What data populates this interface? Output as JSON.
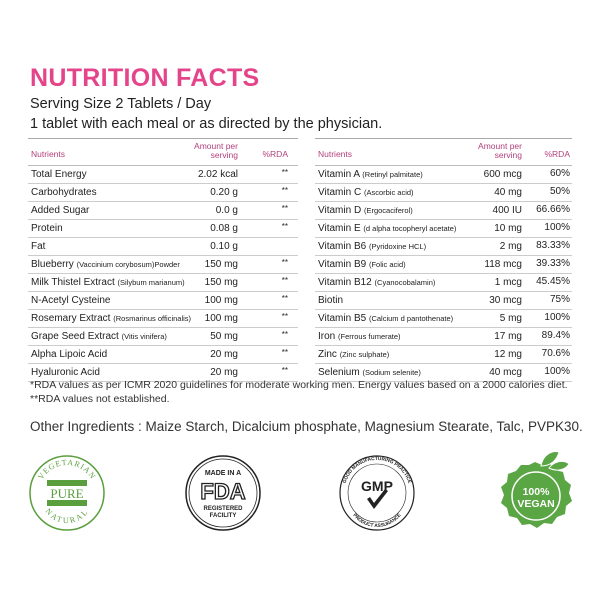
{
  "title": "NUTRITION FACTS",
  "serving_size": "Serving Size 2 Tablets / Day",
  "serving_note": "1 tablet with each meal or as directed by the physician.",
  "accent_color": "#e4458a",
  "left_table": {
    "headers": [
      "Nutrients",
      "Amount per",
      "serving",
      "%RDA"
    ],
    "rows": [
      {
        "name": "Total Energy",
        "sub": "",
        "amount": "2.02 kcal",
        "rda": "**"
      },
      {
        "name": "Carbohydrates",
        "sub": "",
        "amount": "0.20  g",
        "rda": "**"
      },
      {
        "name": "Added Sugar",
        "sub": "",
        "amount": "0.0 g",
        "rda": "**"
      },
      {
        "name": "Protein",
        "sub": "",
        "amount": "0.08 g",
        "rda": "**"
      },
      {
        "name": "Fat",
        "sub": "",
        "amount": "0.10 g",
        "rda": ""
      },
      {
        "name": "Blueberry",
        "sub": "(Vaccinium corybosum)Powder",
        "amount": "150 mg",
        "rda": "**"
      },
      {
        "name": "Milk Thistel Extract",
        "sub": "(Silybum marianum)",
        "amount": "150 mg",
        "rda": "**"
      },
      {
        "name": "N-Acetyl Cysteine",
        "sub": "",
        "amount": "100 mg",
        "rda": "**"
      },
      {
        "name": "Rosemary Extract",
        "sub": "(Rosmarinus officinalis)",
        "amount": "100 mg",
        "rda": "**"
      },
      {
        "name": "Grape Seed Extract",
        "sub": "(Vitis vinifera)",
        "amount": "50 mg",
        "rda": "**"
      },
      {
        "name": "Alpha Lipoic Acid",
        "sub": "",
        "amount": "20 mg",
        "rda": "**"
      },
      {
        "name": "Hyaluronic Acid",
        "sub": "",
        "amount": "20 mg",
        "rda": "**"
      }
    ]
  },
  "right_table": {
    "headers": [
      "Nutrients",
      "Amount per",
      "serving",
      "%RDA"
    ],
    "rows": [
      {
        "name": "Vitamin A",
        "sub": "(Retinyl palmitate)",
        "amount": "600 mcg",
        "rda": "60%"
      },
      {
        "name": "Vitamin C",
        "sub": "(Ascorbic acid)",
        "amount": "40 mg",
        "rda": "50%"
      },
      {
        "name": "Vitamin D",
        "sub": "(Ergocaciferol)",
        "amount": "400 IU",
        "rda": "66.66%"
      },
      {
        "name": "Vitamin E",
        "sub": "(d alpha tocopheryl acetate)",
        "amount": "10 mg",
        "rda": "100%"
      },
      {
        "name": "Vitamin B6",
        "sub": "(Pyridoxine HCL)",
        "amount": "2 mg",
        "rda": "83.33%"
      },
      {
        "name": "Vitamin B9",
        "sub": "(Folic acid)",
        "amount": "118 mcg",
        "rda": "39.33%"
      },
      {
        "name": "Vitamin B12",
        "sub": "(Cyanocobalamin)",
        "amount": "1 mcg",
        "rda": "45.45%"
      },
      {
        "name": "Biotin",
        "sub": "",
        "amount": "30 mcg",
        "rda": "75%"
      },
      {
        "name": "Vitamin B5",
        "sub": "(Calcium d pantothenate)",
        "amount": "5 mg",
        "rda": "100%"
      },
      {
        "name": "Iron",
        "sub": "(Ferrous fumerate)",
        "amount": "17 mg",
        "rda": "89.4%"
      },
      {
        "name": "Zinc",
        "sub": "(Zinc sulphate)",
        "amount": "12 mg",
        "rda": "70.6%"
      },
      {
        "name": "Selenium",
        "sub": "(Sodium selenite)",
        "amount": "40 mcg",
        "rda": "100%"
      }
    ]
  },
  "footnotes": [
    "*RDA values as per ICMR 2020 guidelines for moderate working men. Energy values based on a 2000 calories diet.",
    "**RDA values not established."
  ],
  "other_ingredients": "Other Ingredients : Maize Starch, Dicalcium phosphate, Magnesium Stearate, Talc, PVPK30.",
  "badges": [
    {
      "icon": "vegetarian-pure-natural-seal",
      "text": [
        "VEGETARIAN",
        "PURE",
        "NATURAL"
      ],
      "color": "#5a9e3e"
    },
    {
      "icon": "fda-registered-seal",
      "text": [
        "MADE IN A",
        "FDA",
        "REGISTERED",
        "FACILITY"
      ],
      "color": "#222222"
    },
    {
      "icon": "gmp-seal",
      "text": [
        "GOOD MANUFACTURING PRACTICE",
        "GMP",
        "PRODUCT ASSURANCE"
      ],
      "color": "#222222"
    },
    {
      "icon": "vegan-seal",
      "text": [
        "100%",
        "VEGAN"
      ],
      "color": "#5aa544"
    }
  ]
}
